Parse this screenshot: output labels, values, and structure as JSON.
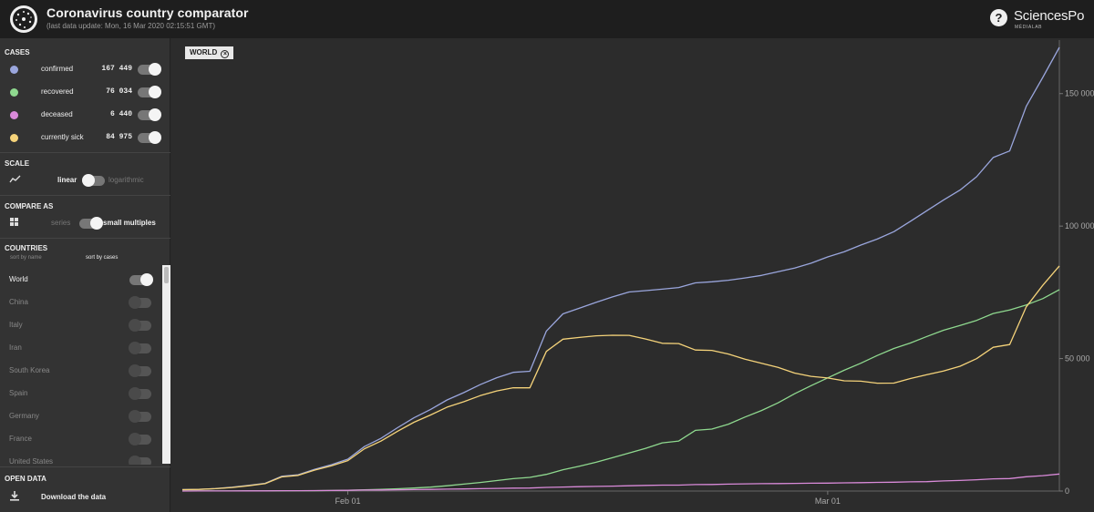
{
  "header": {
    "title": "Coronavirus country comparator",
    "subtitle": "(last data update: Mon, 16 Mar 2020 02:15:51 GMT)",
    "help_label": "?",
    "brand_name": "SciencesPo",
    "brand_sub": "MÉDIALAB"
  },
  "sidebar": {
    "cases": {
      "title": "CASES",
      "items": [
        {
          "label": "confirmed",
          "value": "167 449",
          "color": "#9aa6dd",
          "on": true
        },
        {
          "label": "recovered",
          "value": "76 034",
          "color": "#8fd98f",
          "on": true
        },
        {
          "label": "deceased",
          "value": "6 440",
          "color": "#d98ad9",
          "on": true
        },
        {
          "label": "currently sick",
          "value": "84 975",
          "color": "#f5d37a",
          "on": true
        }
      ]
    },
    "scale": {
      "title": "SCALE",
      "icon": "trend-icon",
      "linear": "linear",
      "logarithmic": "logarithmic"
    },
    "compare": {
      "title": "COMPARE AS",
      "icon": "grid-icon",
      "series": "series",
      "small_multiples": "small multiples"
    },
    "countries": {
      "title": "COUNTRIES",
      "sort_by_name": "sort by name",
      "sort_by_cases": "sort by cases",
      "items": [
        {
          "label": "World",
          "on": true
        },
        {
          "label": "China",
          "on": false
        },
        {
          "label": "Italy",
          "on": false
        },
        {
          "label": "Iran",
          "on": false
        },
        {
          "label": "South Korea",
          "on": false
        },
        {
          "label": "Spain",
          "on": false
        },
        {
          "label": "Germany",
          "on": false
        },
        {
          "label": "France",
          "on": false
        },
        {
          "label": "United States",
          "on": false
        }
      ]
    },
    "open_data": {
      "title": "OPEN DATA",
      "icon": "download-icon",
      "download": "Download the data"
    }
  },
  "chart_tag": {
    "label": "WORLD",
    "icon": "close-circle-icon"
  },
  "chart_data": {
    "type": "line",
    "title": "WORLD",
    "xlabel": "",
    "ylabel": "",
    "x": [
      "2020-01-22",
      "2020-01-23",
      "2020-01-24",
      "2020-01-25",
      "2020-01-26",
      "2020-01-27",
      "2020-01-28",
      "2020-01-29",
      "2020-01-30",
      "2020-01-31",
      "2020-02-01",
      "2020-02-02",
      "2020-02-03",
      "2020-02-04",
      "2020-02-05",
      "2020-02-06",
      "2020-02-07",
      "2020-02-08",
      "2020-02-09",
      "2020-02-10",
      "2020-02-11",
      "2020-02-12",
      "2020-02-13",
      "2020-02-14",
      "2020-02-15",
      "2020-02-16",
      "2020-02-17",
      "2020-02-18",
      "2020-02-19",
      "2020-02-20",
      "2020-02-21",
      "2020-02-22",
      "2020-02-23",
      "2020-02-24",
      "2020-02-25",
      "2020-02-26",
      "2020-02-27",
      "2020-02-28",
      "2020-02-29",
      "2020-03-01",
      "2020-03-02",
      "2020-03-03",
      "2020-03-04",
      "2020-03-05",
      "2020-03-06",
      "2020-03-07",
      "2020-03-08",
      "2020-03-09",
      "2020-03-10",
      "2020-03-11",
      "2020-03-12",
      "2020-03-13",
      "2020-03-14",
      "2020-03-15"
    ],
    "series": [
      {
        "name": "confirmed",
        "color": "#9aa6dd",
        "values": [
          555,
          653,
          941,
          1434,
          2118,
          2927,
          5578,
          6166,
          8234,
          9927,
          12038,
          16787,
          19881,
          23892,
          27635,
          30817,
          34391,
          37120,
          40150,
          42762,
          44802,
          45221,
          60368,
          66885,
          69030,
          71224,
          73258,
          75136,
          75639,
          76197,
          76823,
          78579,
          78965,
          79568,
          80413,
          81395,
          82754,
          84120,
          86011,
          88369,
          90306,
          92840,
          95120,
          97886,
          101801,
          105847,
          109821,
          113590,
          118620,
          125875,
          128343,
          145193,
          156097,
          167449
        ]
      },
      {
        "name": "recovered",
        "color": "#8fd98f",
        "values": [
          28,
          30,
          36,
          39,
          52,
          61,
          107,
          126,
          143,
          222,
          284,
          472,
          623,
          852,
          1124,
          1487,
          2011,
          2616,
          3244,
          3946,
          4683,
          5150,
          6295,
          8058,
          9395,
          10865,
          12583,
          14352,
          16121,
          18177,
          18890,
          22886,
          23394,
          25227,
          27905,
          30384,
          33277,
          36711,
          39782,
          42716,
          45602,
          48229,
          51171,
          53797,
          55866,
          58359,
          60694,
          62494,
          64404,
          67003,
          68324,
          70251,
          72624,
          76034
        ]
      },
      {
        "name": "deceased",
        "color": "#d98ad9",
        "values": [
          17,
          18,
          26,
          42,
          56,
          82,
          131,
          133,
          171,
          213,
          259,
          362,
          426,
          492,
          564,
          634,
          719,
          806,
          906,
          1013,
          1113,
          1118,
          1371,
          1523,
          1666,
          1770,
          1868,
          2007,
          2122,
          2247,
          2251,
          2458,
          2469,
          2629,
          2708,
          2770,
          2814,
          2872,
          2941,
          2996,
          3085,
          3160,
          3254,
          3348,
          3460,
          3558,
          3802,
          3988,
          4262,
          4615,
          4720,
          5404,
          5819,
          6440
        ]
      },
      {
        "name": "currently sick",
        "color": "#f5d37a",
        "values": [
          510,
          605,
          879,
          1353,
          2010,
          2784,
          5340,
          5907,
          7920,
          9492,
          11495,
          15953,
          18832,
          22548,
          25947,
          28696,
          31661,
          33698,
          36000,
          37803,
          39006,
          38953,
          52702,
          57304,
          57969,
          58588,
          58807,
          58777,
          57396,
          55773,
          55682,
          53235,
          53102,
          51712,
          49800,
          48241,
          46663,
          44537,
          43288,
          42657,
          41619,
          41451,
          40695,
          40741,
          42475,
          43930,
          45325,
          47108,
          49954,
          54257,
          55299,
          69538,
          77654,
          84975
        ]
      }
    ],
    "x_ticks": [
      "Feb 01",
      "Mar 01"
    ],
    "y_ticks": [
      "0",
      "50 000",
      "100 000",
      "150 000"
    ],
    "ylim": [
      0,
      167449
    ],
    "y_axis_position": "right",
    "grid": false,
    "legend": "none"
  }
}
